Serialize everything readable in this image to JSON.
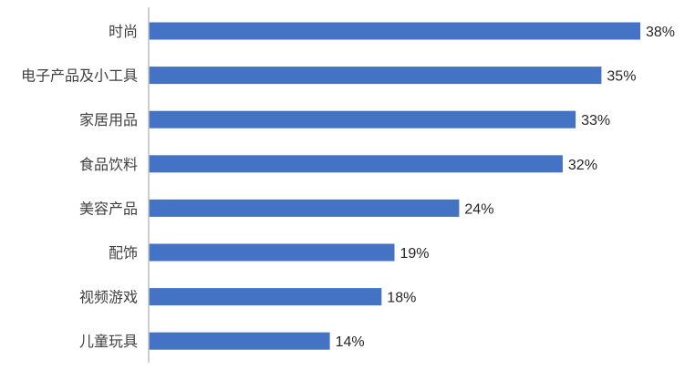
{
  "chart_data": {
    "type": "bar",
    "orientation": "horizontal",
    "categories": [
      "时尚",
      "电子产品及小工具",
      "家居用品",
      "食品饮料",
      "美容产品",
      "配饰",
      "视频游戏",
      "儿童玩具"
    ],
    "values": [
      38,
      35,
      33,
      32,
      24,
      19,
      18,
      14
    ],
    "value_labels": [
      "38%",
      "35%",
      "33%",
      "32%",
      "24%",
      "19%",
      "18%",
      "14%"
    ],
    "value_unit": "%",
    "xlim": [
      0,
      39
    ],
    "title": "",
    "xlabel": "",
    "ylabel": "",
    "grid": false,
    "legend": "none",
    "bar_color": "#4472C4",
    "axis_color": "#BFBFBF"
  }
}
